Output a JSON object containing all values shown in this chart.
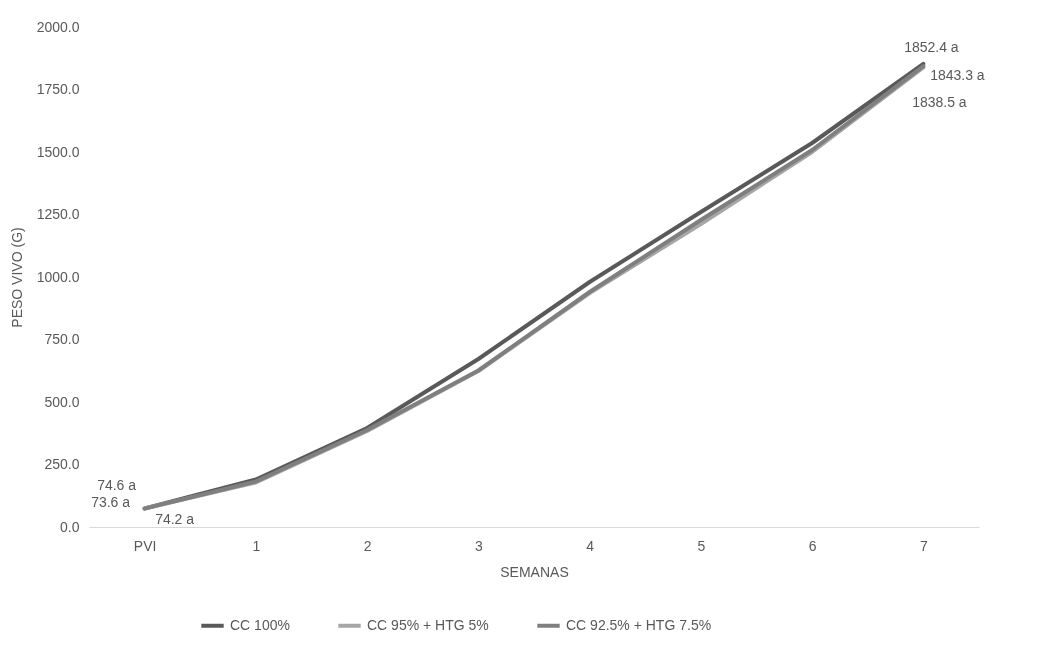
{
  "chart_data": {
    "type": "line",
    "xlabel": "SEMANAS",
    "ylabel": "PESO VIVO (G)",
    "categories": [
      "PVI",
      "1",
      "2",
      "3",
      "4",
      "5",
      "6",
      "7"
    ],
    "series": [
      {
        "name": "CC 100%",
        "color": "#595959",
        "values": [
          74.6,
          190,
          396,
          672,
          980,
          1260,
          1536,
          1852.4
        ],
        "value_labels": [
          "74.6 a",
          null,
          null,
          null,
          null,
          null,
          null,
          "1852.4 a"
        ]
      },
      {
        "name": "CC 95% + HTG 5%",
        "color": "#a6a6a6",
        "values": [
          74.2,
          178,
          384,
          624,
          936,
          1212,
          1500,
          1838.5
        ],
        "value_labels": [
          "74.2 a",
          null,
          null,
          null,
          null,
          null,
          null,
          "1838.5 a"
        ]
      },
      {
        "name": "CC 92.5% + HTG 7.5%",
        "color": "#7f7f7f",
        "values": [
          73.6,
          182,
          388,
          626,
          940,
          1228,
          1508,
          1843.3
        ],
        "value_labels": [
          "73.6 a",
          null,
          null,
          null,
          null,
          null,
          null,
          "1843.3 a"
        ]
      }
    ],
    "ylim": [
      0,
      2000
    ],
    "yticks": [
      {
        "value": 0,
        "label": "0.0"
      },
      {
        "value": 250,
        "label": "250.0"
      },
      {
        "value": 500,
        "label": "500.0"
      },
      {
        "value": 750,
        "label": "750.0"
      },
      {
        "value": 1000,
        "label": "1000.0"
      },
      {
        "value": 1250,
        "label": "1250.0"
      },
      {
        "value": 1500,
        "label": "1500.0"
      },
      {
        "value": 1750,
        "label": "1750.0"
      },
      {
        "value": 2000,
        "label": "2000.0"
      }
    ],
    "grid": false,
    "legend": "bottom",
    "marker": "none",
    "line_style": "solid"
  }
}
